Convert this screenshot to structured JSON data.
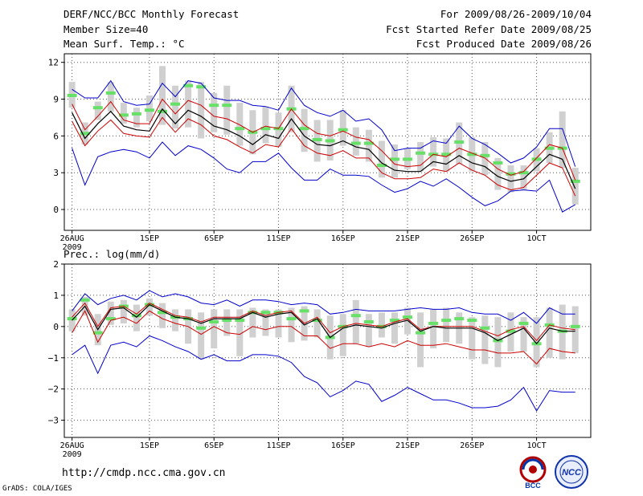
{
  "header": {
    "title": "DERF/NCC/BCC Monthly Forecast",
    "member_size": "Member Size=40",
    "variable": "Mean Surf. Temp.: °C",
    "period": "For 2009/08/26-2009/10/04",
    "started": "Fcst Started Refer Date 2009/08/25",
    "produced": "Fcst Produced Date 2009/08/26"
  },
  "footer": {
    "url": "http://cmdp.ncc.cma.gov.cn",
    "credit": "GrADS: COLA/IGES",
    "logo_bcc": "BCC",
    "logo_ncc": "NCC"
  },
  "colors": {
    "box": "#d0d0d0",
    "median": "#66e066",
    "ensemble_mean": "#000000",
    "std_band": "#cc0000",
    "envelope": "#0000cc"
  },
  "chart_data": [
    {
      "type": "line",
      "title": "Mean Surf. Temp.: °C",
      "x": [
        26,
        27,
        28,
        29,
        30,
        31,
        32,
        33,
        34,
        35,
        36,
        37,
        38,
        39,
        40,
        41,
        42,
        43,
        44,
        45,
        46,
        47,
        48,
        49,
        50,
        51,
        52,
        53,
        54,
        55,
        56,
        57,
        58,
        59,
        60,
        61,
        62,
        63,
        64,
        65
      ],
      "x_tick_labels": [
        {
          "x": 26,
          "label": "26AUG",
          "sub": "2009"
        },
        {
          "x": 32,
          "label": "1SEP"
        },
        {
          "x": 37,
          "label": "6SEP"
        },
        {
          "x": 42,
          "label": "11SEP"
        },
        {
          "x": 47,
          "label": "16SEP"
        },
        {
          "x": 52,
          "label": "21SEP"
        },
        {
          "x": 57,
          "label": "26SEP"
        },
        {
          "x": 62,
          "label": "1OCT"
        }
      ],
      "ylim": [
        -1.7,
        12.7
      ],
      "yticks": [
        0,
        3,
        6,
        9,
        12
      ],
      "y_tick_labels": [
        "0",
        "3",
        "6",
        "9",
        "12"
      ],
      "grid": true,
      "series": [
        {
          "name": "ensemble max",
          "role": "envelope_upper",
          "values": [
            9.8,
            9.1,
            9.1,
            10.5,
            8.8,
            8.5,
            8.6,
            10.3,
            9.2,
            10.5,
            10.3,
            9.1,
            8.9,
            8.9,
            8.5,
            8.4,
            8.1,
            9.9,
            8.5,
            7.9,
            7.6,
            8.1,
            7.2,
            7.4,
            6.5,
            4.8,
            5.0,
            5.0,
            5.6,
            5.4,
            6.8,
            5.8,
            5.3,
            4.6,
            3.8,
            4.2,
            5.1,
            6.6,
            6.6,
            3.5
          ]
        },
        {
          "name": "mean + 1 std",
          "role": "std_upper",
          "values": [
            8.6,
            6.5,
            7.6,
            8.8,
            7.3,
            7.0,
            7.0,
            9.0,
            7.8,
            8.9,
            8.5,
            7.6,
            7.4,
            6.9,
            6.3,
            6.8,
            6.6,
            8.2,
            6.9,
            6.2,
            6.0,
            6.4,
            5.9,
            5.7,
            4.8,
            3.7,
            3.5,
            3.6,
            4.5,
            4.3,
            5.0,
            4.6,
            4.2,
            3.3,
            2.8,
            3.1,
            4.2,
            5.3,
            5.0,
            2.4
          ]
        },
        {
          "name": "ensemble mean",
          "role": "mean",
          "values": [
            7.9,
            5.8,
            7.0,
            8.0,
            6.8,
            6.5,
            6.4,
            8.2,
            7.0,
            8.1,
            7.6,
            6.8,
            6.5,
            6.0,
            5.3,
            6.1,
            5.8,
            7.4,
            6.0,
            5.3,
            5.2,
            5.6,
            5.1,
            4.9,
            3.8,
            3.2,
            3.1,
            3.1,
            3.9,
            3.7,
            4.4,
            3.8,
            3.5,
            2.7,
            2.3,
            2.5,
            3.5,
            4.5,
            4.1,
            1.7
          ]
        },
        {
          "name": "mean - 1 std",
          "role": "std_lower",
          "values": [
            7.2,
            5.2,
            6.4,
            7.3,
            6.2,
            6.0,
            5.9,
            7.5,
            6.3,
            7.4,
            6.9,
            6.0,
            5.7,
            5.1,
            4.6,
            5.3,
            5.1,
            6.6,
            5.2,
            4.6,
            4.4,
            4.8,
            4.2,
            4.2,
            3.0,
            2.5,
            2.5,
            2.6,
            3.3,
            3.1,
            3.8,
            3.2,
            2.8,
            2.0,
            1.6,
            1.8,
            2.8,
            3.8,
            3.4,
            1.1
          ]
        },
        {
          "name": "ensemble min",
          "role": "envelope_lower",
          "values": [
            5.0,
            2.0,
            4.3,
            4.7,
            4.9,
            4.7,
            4.2,
            5.5,
            4.4,
            5.2,
            4.9,
            4.2,
            3.3,
            3.0,
            3.9,
            3.9,
            4.6,
            3.4,
            2.4,
            2.4,
            3.3,
            2.8,
            2.8,
            2.7,
            2.0,
            1.4,
            1.7,
            2.3,
            1.9,
            2.5,
            1.8,
            1.0,
            0.3,
            0.7,
            1.5,
            1.6,
            1.5,
            2.4,
            -0.2,
            0.4
          ]
        },
        {
          "name": "median",
          "role": "median",
          "values": [
            9.3,
            6.2,
            8.3,
            9.5,
            7.7,
            7.8,
            8.1,
            8.0,
            8.6,
            10.1,
            10.0,
            8.5,
            8.5,
            6.6,
            6.3,
            6.6,
            6.6,
            8.2,
            6.6,
            5.7,
            5.6,
            6.5,
            5.4,
            5.4,
            3.6,
            4.1,
            4.1,
            4.6,
            4.5,
            4.5,
            5.5,
            4.5,
            4.4,
            3.8,
            2.9,
            3.0,
            4.1,
            5.0,
            5.0,
            2.3
          ]
        },
        {
          "name": "box upper",
          "role": "box_upper",
          "values": [
            10.4,
            7.1,
            8.8,
            10.4,
            8.7,
            8.3,
            9.3,
            11.7,
            10.1,
            10.5,
            10.4,
            9.5,
            10.1,
            8.7,
            8.1,
            8.4,
            7.9,
            10.1,
            8.2,
            7.3,
            7.3,
            8.1,
            6.7,
            6.5,
            5.6,
            5.3,
            5.0,
            5.5,
            5.9,
            5.8,
            7.1,
            5.9,
            5.5,
            4.2,
            3.6,
            3.6,
            5.0,
            6.3,
            8.0,
            3.4
          ]
        },
        {
          "name": "box lower",
          "role": "box_lower",
          "values": [
            8.3,
            5.3,
            7.3,
            8.0,
            7.0,
            6.7,
            7.2,
            6.9,
            6.6,
            6.7,
            5.8,
            6.3,
            6.1,
            5.2,
            4.5,
            5.4,
            5.1,
            6.3,
            4.7,
            3.9,
            4.0,
            5.2,
            4.4,
            3.9,
            2.6,
            2.6,
            3.3,
            3.1,
            3.5,
            3.1,
            3.7,
            3.1,
            2.8,
            1.6,
            1.4,
            1.6,
            3.1,
            3.8,
            3.4,
            0.4
          ]
        }
      ]
    },
    {
      "type": "line",
      "title": "Prec.: log(mm/d)",
      "x": [
        26,
        27,
        28,
        29,
        30,
        31,
        32,
        33,
        34,
        35,
        36,
        37,
        38,
        39,
        40,
        41,
        42,
        43,
        44,
        45,
        46,
        47,
        48,
        49,
        50,
        51,
        52,
        53,
        54,
        55,
        56,
        57,
        58,
        59,
        60,
        61,
        62,
        63,
        64,
        65
      ],
      "x_tick_labels": [
        {
          "x": 26,
          "label": "26AUG",
          "sub": "2009"
        },
        {
          "x": 32,
          "label": "1SEP"
        },
        {
          "x": 37,
          "label": "6SEP"
        },
        {
          "x": 42,
          "label": "11SEP"
        },
        {
          "x": 47,
          "label": "16SEP"
        },
        {
          "x": 52,
          "label": "21SEP"
        },
        {
          "x": 57,
          "label": "26SEP"
        },
        {
          "x": 62,
          "label": "1OCT"
        }
      ],
      "ylim": [
        -3.55,
        2.0
      ],
      "yticks": [
        -3,
        -2,
        -1,
        0,
        1,
        2
      ],
      "y_tick_labels": [
        "−3",
        "−2",
        "−1",
        "0",
        "1",
        "2"
      ],
      "grid": true,
      "series": [
        {
          "name": "ensemble max",
          "role": "envelope_upper",
          "values": [
            0.5,
            1.05,
            0.7,
            0.9,
            1.0,
            0.85,
            1.15,
            0.95,
            1.05,
            0.95,
            0.75,
            0.7,
            0.85,
            0.65,
            0.85,
            0.85,
            0.8,
            0.7,
            0.75,
            0.7,
            0.4,
            0.45,
            0.55,
            0.5,
            0.5,
            0.5,
            0.55,
            0.6,
            0.55,
            0.55,
            0.6,
            0.45,
            0.4,
            0.4,
            0.2,
            0.45,
            0.1,
            0.6,
            0.4,
            0.4
          ]
        },
        {
          "name": "mean + 1 std",
          "role": "std_upper",
          "values": [
            0.3,
            0.75,
            0.0,
            0.6,
            0.65,
            0.4,
            0.75,
            0.55,
            0.35,
            0.3,
            0.15,
            0.3,
            0.3,
            0.3,
            0.5,
            0.35,
            0.45,
            0.5,
            0.1,
            0.3,
            -0.2,
            0.0,
            0.1,
            0.05,
            0.0,
            0.15,
            0.25,
            -0.1,
            0.0,
            0.0,
            0.0,
            0.0,
            -0.15,
            -0.3,
            -0.1,
            0.0,
            -0.45,
            0.05,
            -0.05,
            -0.1
          ]
        },
        {
          "name": "ensemble mean",
          "role": "mean",
          "values": [
            0.2,
            0.65,
            -0.1,
            0.55,
            0.6,
            0.3,
            0.7,
            0.5,
            0.3,
            0.25,
            0.1,
            0.25,
            0.25,
            0.25,
            0.45,
            0.3,
            0.4,
            0.45,
            0.05,
            0.25,
            -0.35,
            -0.05,
            0.05,
            0.0,
            -0.05,
            0.1,
            0.2,
            -0.15,
            0.0,
            -0.05,
            -0.05,
            -0.05,
            -0.2,
            -0.45,
            -0.25,
            -0.05,
            -0.55,
            -0.05,
            -0.15,
            -0.15
          ]
        },
        {
          "name": "mean - 1 std",
          "role": "std_lower",
          "values": [
            -0.2,
            0.5,
            -0.5,
            0.2,
            0.3,
            0.1,
            0.5,
            0.25,
            0.1,
            0.0,
            -0.25,
            0.0,
            -0.2,
            -0.25,
            0.0,
            -0.1,
            0.0,
            0.0,
            -0.3,
            -0.3,
            -0.7,
            -0.55,
            -0.55,
            -0.65,
            -0.55,
            -0.65,
            -0.45,
            -0.6,
            -0.6,
            -0.55,
            -0.65,
            -0.75,
            -0.75,
            -0.85,
            -0.85,
            -0.8,
            -1.2,
            -0.7,
            -0.8,
            -0.85
          ]
        },
        {
          "name": "ensemble min",
          "role": "envelope_lower",
          "values": [
            -0.9,
            -0.6,
            -1.5,
            -0.6,
            -0.5,
            -0.65,
            -0.3,
            -0.45,
            -0.65,
            -0.8,
            -1.05,
            -0.9,
            -1.1,
            -1.1,
            -0.9,
            -0.9,
            -0.95,
            -1.15,
            -1.6,
            -1.8,
            -2.25,
            -2.05,
            -1.75,
            -1.85,
            -2.4,
            -2.2,
            -1.95,
            -2.15,
            -2.35,
            -2.35,
            -2.45,
            -2.6,
            -2.6,
            -2.55,
            -2.35,
            -1.95,
            -2.7,
            -2.05,
            -2.1,
            -2.1
          ]
        },
        {
          "name": "median",
          "role": "median",
          "values": [
            0.25,
            0.85,
            -0.2,
            0.25,
            0.65,
            0.35,
            0.7,
            0.45,
            0.3,
            0.25,
            -0.05,
            0.15,
            0.2,
            0.2,
            0.45,
            0.45,
            0.45,
            0.25,
            0.5,
            0.2,
            -0.35,
            0.0,
            0.35,
            0.15,
            0.0,
            0.2,
            0.3,
            -0.2,
            0.1,
            0.2,
            0.25,
            0.2,
            -0.05,
            -0.45,
            -0.15,
            0.1,
            -0.55,
            0.05,
            -0.15,
            0.0
          ]
        },
        {
          "name": "box upper",
          "role": "box_upper",
          "values": [
            0.55,
            0.95,
            0.4,
            0.8,
            0.85,
            0.7,
            0.9,
            0.75,
            0.55,
            0.55,
            0.45,
            0.55,
            0.55,
            0.55,
            0.6,
            0.55,
            0.55,
            0.6,
            0.65,
            0.55,
            0.35,
            0.4,
            0.85,
            0.4,
            0.45,
            0.45,
            0.6,
            0.45,
            0.55,
            0.6,
            0.45,
            0.3,
            0.35,
            0.3,
            0.45,
            0.3,
            0.3,
            0.6,
            0.7,
            0.65
          ]
        },
        {
          "name": "box lower",
          "role": "box_lower",
          "values": [
            -0.15,
            0.35,
            -0.6,
            0.05,
            0.1,
            -0.15,
            0.35,
            -0.05,
            -0.15,
            -0.55,
            -1.05,
            -0.7,
            -0.3,
            -0.95,
            -0.35,
            -0.3,
            -0.35,
            -0.5,
            -0.45,
            -0.35,
            -1.05,
            -0.95,
            -0.55,
            -0.65,
            -0.35,
            -0.55,
            -0.25,
            -1.3,
            -0.7,
            -0.5,
            -0.55,
            -1.05,
            -1.2,
            -1.3,
            -0.8,
            -0.8,
            -1.3,
            -1.0,
            -1.05,
            -0.85
          ]
        }
      ]
    }
  ]
}
